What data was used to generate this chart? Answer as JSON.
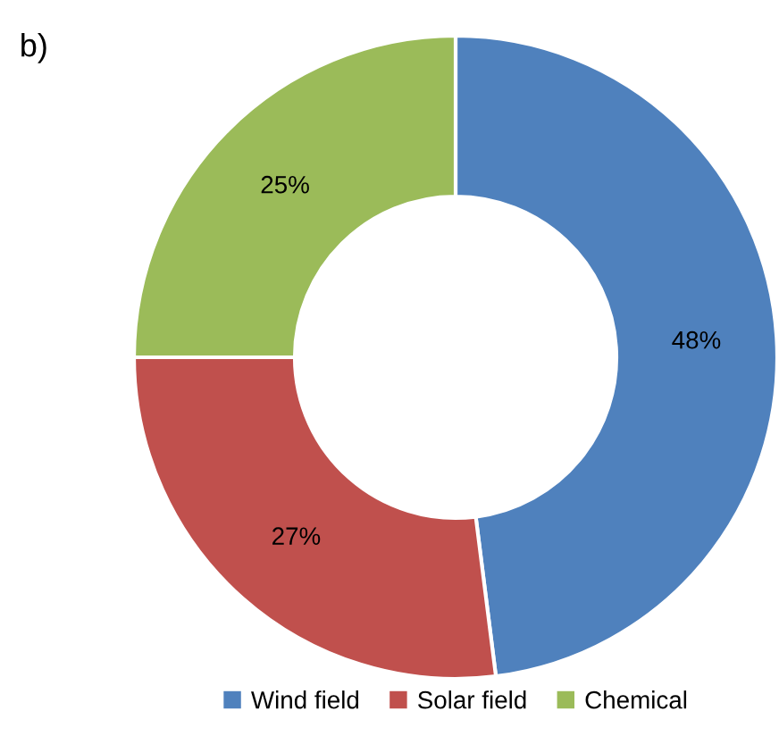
{
  "chart_data": {
    "type": "donut",
    "title": "b)",
    "categories": [
      "Wind field",
      "Solar field",
      "Chemical"
    ],
    "values": [
      48,
      27,
      25
    ],
    "colors": [
      "#4f81bd",
      "#c0504d",
      "#9bbb59"
    ],
    "value_labels": [
      "48%",
      "27%",
      "25%"
    ],
    "legend": "bottom"
  }
}
